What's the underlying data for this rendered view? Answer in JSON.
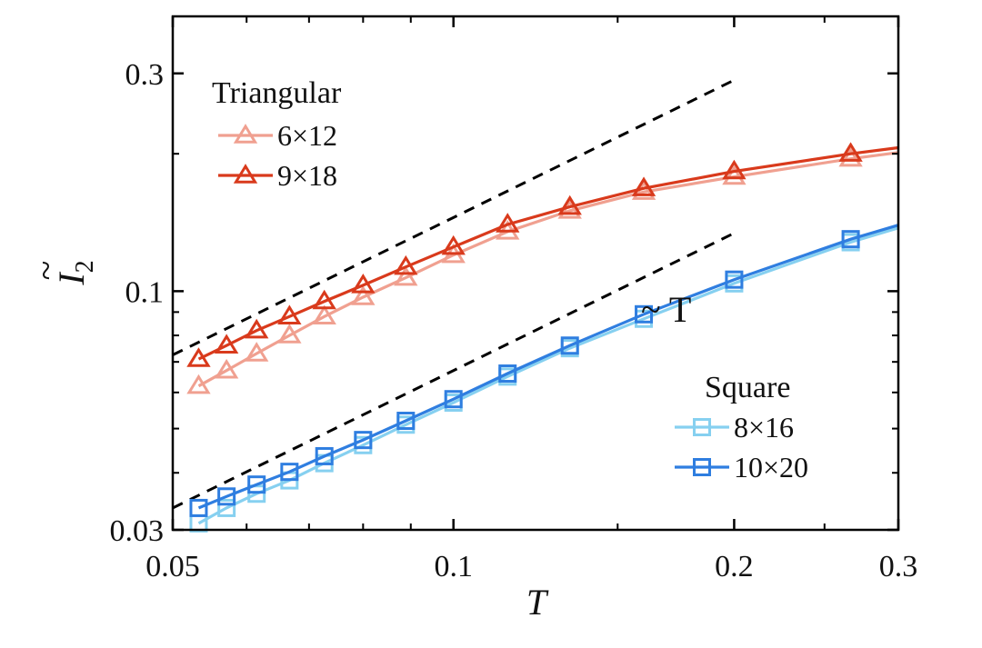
{
  "chart_data": {
    "type": "line",
    "xscale": "log",
    "yscale": "log",
    "xlim": [
      0.05,
      0.3
    ],
    "ylim": [
      0.03,
      0.4
    ],
    "xticks": [
      {
        "value": 0.05,
        "label": "0.05"
      },
      {
        "value": 0.1,
        "label": "0.1"
      },
      {
        "value": 0.2,
        "label": "0.2"
      },
      {
        "value": 0.3,
        "label": "0.3"
      }
    ],
    "yticks": [
      {
        "value": 0.03,
        "label": "0.03"
      },
      {
        "value": 0.1,
        "label": "0.1"
      },
      {
        "value": 0.3,
        "label": "0.3"
      }
    ],
    "xlabel": "T",
    "ylabel_base": "I",
    "ylabel_sub": "2",
    "ylabel_accent": "~",
    "annotation": "~ T",
    "x": [
      0.0533,
      0.0571,
      0.0615,
      0.0667,
      0.0727,
      0.08,
      0.0889,
      0.1,
      0.1143,
      0.1333,
      0.16,
      0.2,
      0.2667
    ],
    "series": [
      {
        "name": "6×12",
        "group": "Triangular",
        "marker": "triangle",
        "color": "#f0a090",
        "x": [
          0.0533,
          0.0571,
          0.0615,
          0.0667,
          0.0727,
          0.08,
          0.0889,
          0.1,
          0.1143,
          0.1333,
          0.16,
          0.2,
          0.2667
        ],
        "values": [
          0.062,
          0.067,
          0.073,
          0.08,
          0.088,
          0.097,
          0.107,
          0.12,
          0.135,
          0.15,
          0.165,
          0.178,
          0.195
        ]
      },
      {
        "name": "9×18",
        "group": "Triangular",
        "marker": "triangle",
        "color": "#d93a1c",
        "x": [
          0.0533,
          0.0571,
          0.0615,
          0.0667,
          0.0727,
          0.08,
          0.0889,
          0.1,
          0.1143,
          0.1333,
          0.16,
          0.2,
          0.2667
        ],
        "values": [
          0.071,
          0.076,
          0.082,
          0.088,
          0.095,
          0.103,
          0.113,
          0.125,
          0.14,
          0.153,
          0.168,
          0.183,
          0.2
        ]
      },
      {
        "name": "8×16",
        "group": "Square",
        "marker": "square",
        "color": "#86d0f0",
        "x": [
          0.0533,
          0.0571,
          0.0615,
          0.0667,
          0.0727,
          0.08,
          0.0889,
          0.1,
          0.1143,
          0.1333,
          0.16,
          0.2,
          0.2667
        ],
        "values": [
          0.031,
          0.0335,
          0.036,
          0.0385,
          0.042,
          0.046,
          0.051,
          0.057,
          0.065,
          0.075,
          0.087,
          0.104,
          0.128
        ]
      },
      {
        "name": "10×20",
        "group": "Square",
        "marker": "square",
        "color": "#2f7ee0",
        "x": [
          0.0533,
          0.0571,
          0.0615,
          0.0667,
          0.0727,
          0.08,
          0.0889,
          0.1,
          0.1143,
          0.1333,
          0.16,
          0.2,
          0.2667
        ],
        "values": [
          0.0335,
          0.0355,
          0.0377,
          0.0402,
          0.0435,
          0.0472,
          0.052,
          0.058,
          0.066,
          0.076,
          0.089,
          0.106,
          0.13
        ]
      }
    ],
    "reference_lines": [
      {
        "name": "linear-fit-triangular",
        "style": "dashed",
        "color": "#000000",
        "x": [
          0.05,
          0.2
        ],
        "values": [
          0.0725,
          0.29
        ]
      },
      {
        "name": "linear-fit-square",
        "style": "dashed",
        "color": "#000000",
        "x": [
          0.05,
          0.2
        ],
        "values": [
          0.0335,
          0.134
        ]
      }
    ],
    "legends": [
      {
        "title": "Triangular",
        "placement": "top-left",
        "entries": [
          "6×12",
          "9×18"
        ]
      },
      {
        "title": "Square",
        "placement": "bottom-right",
        "entries": [
          "8×16",
          "10×20"
        ]
      }
    ]
  }
}
